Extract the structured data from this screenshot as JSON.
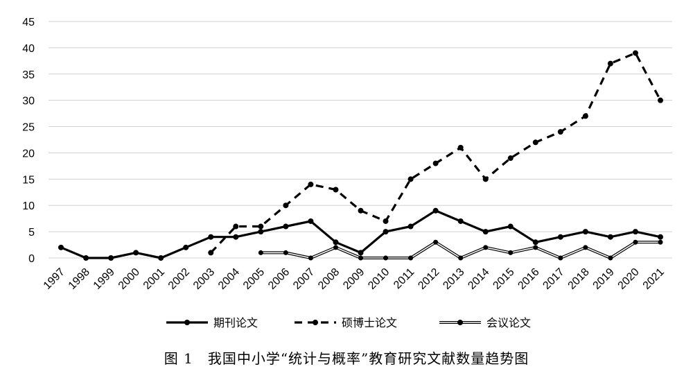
{
  "caption": "图 1　我国中小学“统计与概率”教育研究文献数量趋势图",
  "chart_data": {
    "type": "line",
    "title": "",
    "xlabel": "",
    "ylabel": "",
    "ylim": [
      0,
      45
    ],
    "yticks": [
      0,
      5,
      10,
      15,
      20,
      25,
      30,
      35,
      40,
      45
    ],
    "grid": "horizontal",
    "legend_position": "bottom",
    "categories": [
      "1997",
      "1998",
      "1999",
      "2000",
      "2001",
      "2002",
      "2003",
      "2004",
      "2005",
      "2006",
      "2007",
      "2008",
      "2009",
      "2010",
      "2011",
      "2012",
      "2013",
      "2014",
      "2015",
      "2016",
      "2017",
      "2018",
      "2019",
      "2020",
      "2021"
    ],
    "series": [
      {
        "name": "期刊论文",
        "style": "solid",
        "color": "#000000",
        "values": [
          2,
          0,
          0,
          1,
          0,
          2,
          4,
          4,
          5,
          6,
          7,
          3,
          1,
          5,
          6,
          9,
          7,
          5,
          6,
          3,
          4,
          5,
          4,
          5,
          4
        ]
      },
      {
        "name": "硕博士论文",
        "style": "dashed",
        "color": "#000000",
        "values": [
          null,
          null,
          null,
          null,
          null,
          null,
          1,
          6,
          6,
          10,
          14,
          13,
          9,
          7,
          15,
          18,
          21,
          15,
          19,
          22,
          24,
          27,
          37,
          39,
          30
        ]
      },
      {
        "name": "会议论文",
        "style": "double",
        "color": "#000000",
        "values": [
          null,
          null,
          null,
          null,
          null,
          null,
          null,
          null,
          1,
          1,
          0,
          2,
          0,
          0,
          0,
          3,
          0,
          2,
          1,
          2,
          0,
          2,
          0,
          3,
          3
        ]
      }
    ]
  }
}
